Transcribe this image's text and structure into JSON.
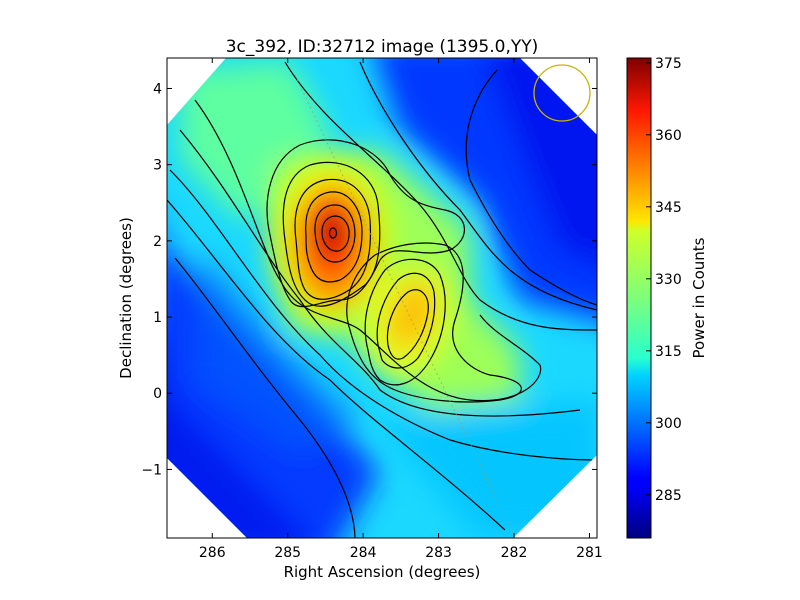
{
  "chart_data": {
    "type": "heatmap",
    "title": "3c_392, ID:32712 image (1395.0,YY)",
    "xlabel": "Right Ascension (degrees)",
    "ylabel": "Declination (degrees)",
    "colorbar_label": "Power in Counts",
    "x_inverted": true,
    "xlim": [
      286.6,
      280.9
    ],
    "ylim": [
      -1.9,
      4.4
    ],
    "x_ticks": [
      286,
      285,
      284,
      283,
      282,
      281
    ],
    "x_tick_labels": [
      "286",
      "285",
      "284",
      "283",
      "282",
      "281"
    ],
    "y_ticks": [
      -1,
      0,
      1,
      2,
      3,
      4
    ],
    "y_tick_labels": [
      "−1",
      "0",
      "1",
      "2",
      "3",
      "4"
    ],
    "colorbar_range": [
      276,
      376
    ],
    "colorbar_ticks": [
      285,
      300,
      315,
      330,
      345,
      360,
      375
    ],
    "colorbar_tick_labels": [
      "285",
      "300",
      "315",
      "330",
      "345",
      "360",
      "375"
    ],
    "colormap": "jet",
    "peak_sources": [
      {
        "x": 284.35,
        "y": 2.1,
        "value": 376
      },
      {
        "x": 283.35,
        "y": 0.95,
        "value": 342
      }
    ],
    "contours": true,
    "beam_circle": {
      "x": 281.35,
      "y": 3.95,
      "color": "#c8b400"
    },
    "grid": false
  }
}
